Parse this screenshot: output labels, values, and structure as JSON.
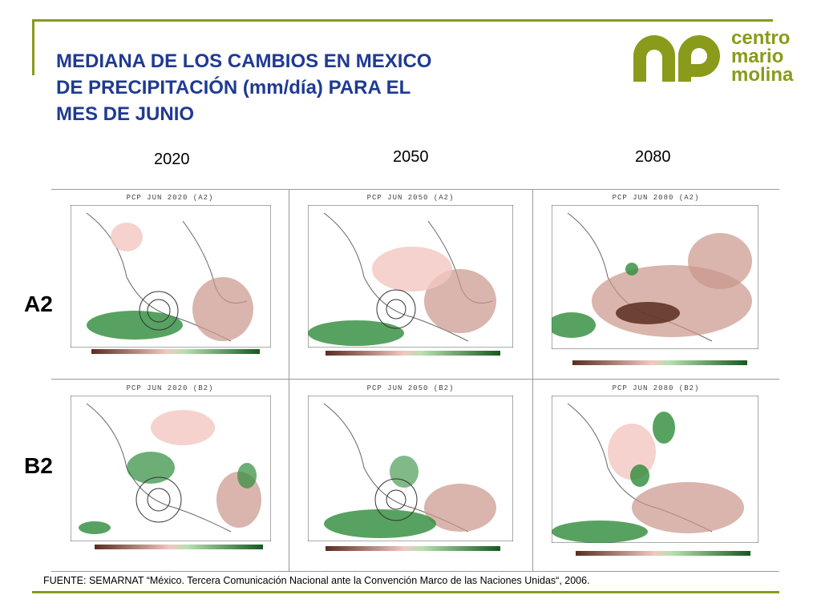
{
  "title": {
    "line1": "MEDIANA DE LOS CAMBIOS EN MEXICO",
    "line2": "DE PRECIPITACIÓN (mm/día) PARA EL",
    "line3": "MES DE JUNIO"
  },
  "logo": {
    "line1": "centro",
    "line2": "mario",
    "line3": "molina",
    "color": "#8a9a1b"
  },
  "years": [
    "2020",
    "2050",
    "2080"
  ],
  "rows": [
    "A2",
    "B2"
  ],
  "maps": [
    {
      "title": "PCP  JUN 2020  (A2)"
    },
    {
      "title": "PCP  JUN 2050  (A2)"
    },
    {
      "title": "PCP  JUN 2080  (A2)"
    },
    {
      "title": "PCP  JUN 2020  (B2)"
    },
    {
      "title": "PCP  JUN 2050  (B2)"
    },
    {
      "title": "PCP  JUN 2080  (B2)"
    }
  ],
  "source": "FUENTE: SEMARNAT “México. Tercera Comunicación Nacional ante la Convención Marco de las Naciones Unidas“, 2006.",
  "colors": {
    "title": "#1f3a93",
    "accent": "#8a9a1b",
    "dry": "#8b5a4a",
    "wet": "#2e8b3a"
  }
}
